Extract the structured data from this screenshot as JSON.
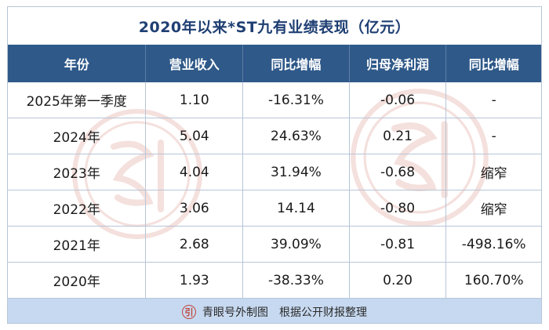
{
  "title": "2020年以来*ST九有业绩表现（亿元）",
  "columns": [
    "年份",
    "营业收入",
    "同比增幅",
    "归母净利润",
    "同比增幅"
  ],
  "rows": [
    [
      "2025年第一季度",
      "1.10",
      "-16.31%",
      "-0.06",
      "-"
    ],
    [
      "2024年",
      "5.04",
      "24.63%",
      "0.21",
      "-"
    ],
    [
      "2023年",
      "4.04",
      "31.94%",
      "-0.68",
      "缩窄"
    ],
    [
      "2022年",
      "3.06",
      "14.14",
      "-0.80",
      "缩窄"
    ],
    [
      "2021年",
      "2.68",
      "39.09%",
      "-0.81",
      "-498.16%"
    ],
    [
      "2020年",
      "1.93",
      "-38.33%",
      "0.20",
      "160.70%"
    ]
  ],
  "footer": {
    "logo_text": "引",
    "source": "青眼号外制图",
    "note": "根据公开财报整理"
  },
  "colors": {
    "title": "#1f3f73",
    "header_bg": "#2f5989",
    "footer_bg": "#c7d9f0",
    "border": "#b7c5d8",
    "watermark": "#e2a9a0"
  },
  "icons": [
    "seal-watermark-icon",
    "logo-seal-icon"
  ]
}
